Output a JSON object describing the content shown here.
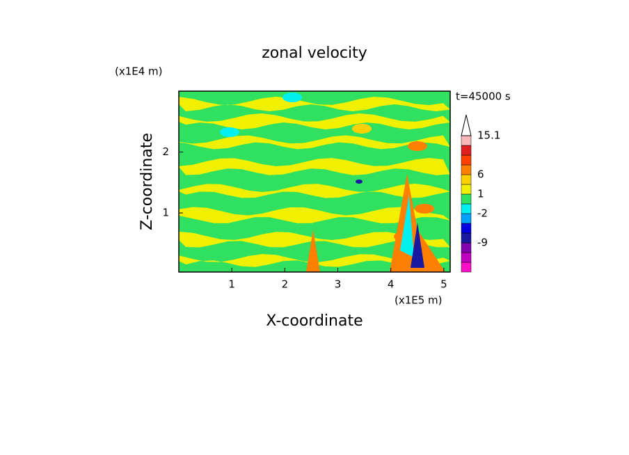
{
  "chart_data": {
    "type": "contour",
    "title": "zonal velocity",
    "x_label": "X-coordinate",
    "y_label": "Z-coordinate",
    "x_unit": "(x1E5 m)",
    "y_unit": "(x1E4 m)",
    "time_label": "t=45000 s",
    "xlim": [
      0,
      5.12
    ],
    "xticks": [
      1,
      2,
      3,
      4,
      5
    ],
    "ylim": [
      0.03,
      3
    ],
    "yticks": [
      1,
      2
    ],
    "colorbar": {
      "colors": [
        "#ff10c8",
        "#c000c0",
        "#8000b0",
        "#1818a0",
        "#0000e0",
        "#00a0ff",
        "#00f0f0",
        "#30e060",
        "#f0f000",
        "#ffd000",
        "#ff8000",
        "#ff4000",
        "#e02020",
        "#f8b8b8"
      ],
      "levels": [
        null,
        null,
        null,
        -9,
        null,
        null,
        -2,
        null,
        1,
        null,
        6,
        null,
        null,
        null,
        15.1
      ]
    }
  }
}
